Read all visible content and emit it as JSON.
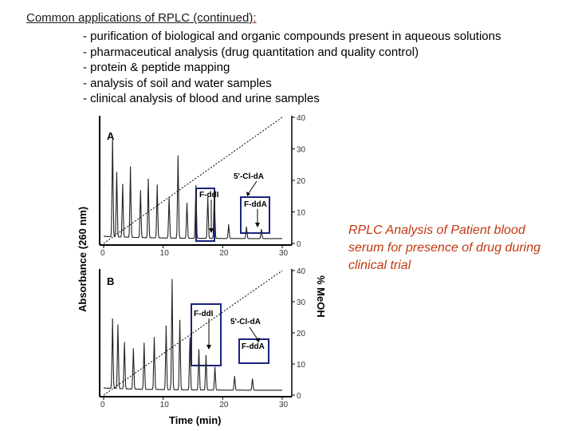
{
  "heading": {
    "prefix": "Common applications of ",
    "term": "RPLC",
    "suffix": " (continued)",
    "colon": ":"
  },
  "bullets": [
    "- purification of biological and organic compounds present in aqueous solutions",
    "- pharmaceutical analysis (drug quantitation and quality control)",
    "- protein & peptide mapping",
    "- analysis of soil and water samples",
    "- clinical analysis of blood and urine samples"
  ],
  "caption": "RPLC Analysis of Patient blood serum for presence of drug during clinical trial",
  "chart_data": {
    "type": "line",
    "xlabel": "Time (min)",
    "ylabel_left": "Absorbance (260 nm)",
    "ylabel_right": "% MeOH",
    "xlim": [
      0,
      30
    ],
    "x_ticks": [
      0,
      10,
      20,
      30
    ],
    "y_right_ticks": [
      0,
      10,
      20,
      30,
      40
    ],
    "panels": [
      {
        "label": "A",
        "annotations": [
          "F-ddI",
          "5'-Cl-dA",
          "F-ddA"
        ],
        "gradient_line": {
          "x": [
            0,
            30
          ],
          "y_pct_meoh": [
            0,
            40
          ]
        }
      },
      {
        "label": "B",
        "annotations": [
          "F-ddI",
          "5'-Cl-dA",
          "F-ddA"
        ],
        "gradient_line": {
          "x": [
            0,
            30
          ],
          "y_pct_meoh": [
            0,
            40
          ]
        }
      }
    ]
  }
}
